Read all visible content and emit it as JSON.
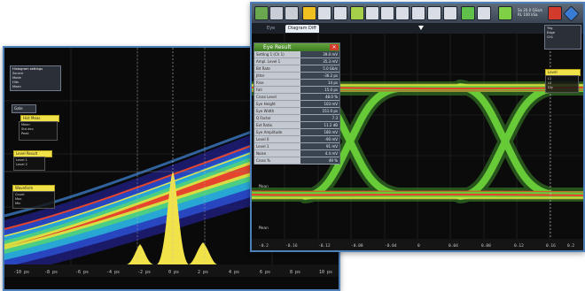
{
  "left_window": {
    "top_panel_title": "Histogram settings",
    "top_panel_lines": [
      "Source",
      "Mode",
      "Hits",
      "Mean"
    ],
    "mini_label": "Gate",
    "panel_a": {
      "header": "Hist Meas",
      "lines": [
        "Mean",
        "Std dev",
        "Peak"
      ]
    },
    "panel_b": {
      "header": "Level Result",
      "lines": [
        "Level 1",
        "Level 2"
      ]
    },
    "panel_c": {
      "header": "Waveform",
      "lines": [
        "Count",
        "Max",
        "Min"
      ]
    },
    "x_ticks": [
      "-10 ps",
      "-8 ps",
      "-6 ps",
      "-4 ps",
      "-2 ps",
      "0 ps",
      "2 ps",
      "4 ps",
      "6 ps",
      "8 ps",
      "10 ps"
    ]
  },
  "right_window": {
    "tabs": [
      "Eye",
      "Diagram Diff"
    ],
    "status_lines": [
      "Sa 20.0 GSa/s",
      "RL 100 kSa",
      "Auto"
    ],
    "measure_panel": {
      "title": "Eye Result",
      "close": "×",
      "rows": [
        {
          "label": "Setting 1 (Ch 1)",
          "value": "39.0 mV"
        },
        {
          "label": "Ampl. Level 1",
          "value": "35.3 mV"
        },
        {
          "label": "Bit Rate",
          "value": "5.0 Gb/s"
        },
        {
          "label": "Jitter",
          "value": "-36.2 ps"
        },
        {
          "label": "Rise",
          "value": "14 ps"
        },
        {
          "label": "Fall",
          "value": "15.0 ps"
        },
        {
          "label": "Cross Level",
          "value": "48.0 %"
        },
        {
          "label": "Eye Height",
          "value": "103 mV"
        },
        {
          "label": "Eye Width",
          "value": "151.0 ps"
        },
        {
          "label": "Q Factor",
          "value": "7.3"
        },
        {
          "label": "Ext Ratio",
          "value": "11.2 dB"
        },
        {
          "label": "Eye Amplitude",
          "value": "180 mV"
        },
        {
          "label": "Level 0",
          "value": "-90 mV"
        },
        {
          "label": "Level 1",
          "value": "91 mV"
        },
        {
          "label": "Noise",
          "value": "4.4 mV"
        },
        {
          "label": "Cross %",
          "value": "49 %"
        }
      ]
    },
    "tag_box": {
      "header": "Level",
      "lines": [
        "L1",
        "L0",
        "Dly"
      ]
    },
    "side_box_lines": [
      "Trig",
      "Edge",
      "Ch1"
    ],
    "markers": [
      "Mean",
      "Mean"
    ],
    "x_ticks": [
      "-0.2",
      "-0.16",
      "-0.12",
      "-0.08",
      "-0.04",
      "0",
      "0.04",
      "0.08",
      "0.12",
      "0.16",
      "0.2"
    ]
  },
  "colors": {
    "trace_green": "#6fd83a",
    "trace_red": "#e5452c",
    "histogram_yellow": "#f2e24a",
    "window_border": "#4d7fb8"
  },
  "icons": [
    "home",
    "save",
    "undo",
    "run",
    "zoom",
    "cursor",
    "measure",
    "math",
    "ref",
    "mask",
    "fft",
    "eye",
    "protocol",
    "history",
    "settings"
  ]
}
